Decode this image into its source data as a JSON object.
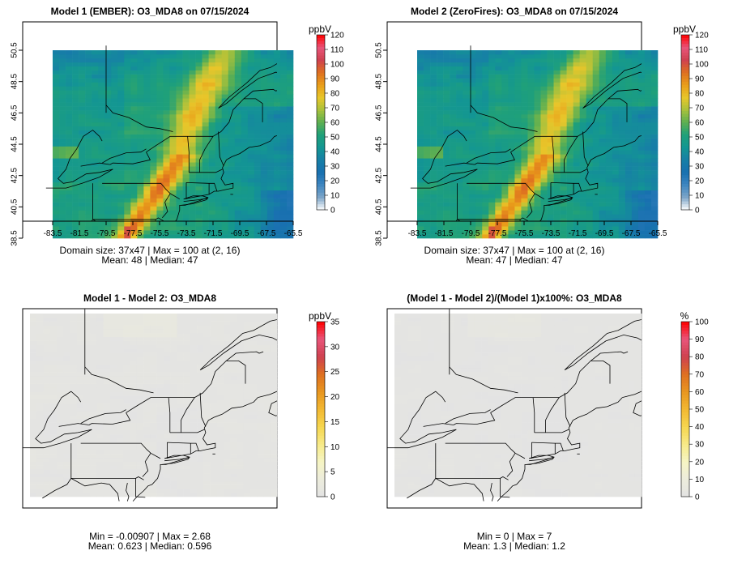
{
  "panels": [
    {
      "id": "p1",
      "title": "Model 1 (EMBER): O3_MDA8 on 07/15/2024",
      "field": "o3",
      "stat_line1": "Domain size: 37x47 | Max = 100 at (2, 16)",
      "stat_line2": "Mean: 48 |  Median: 47",
      "legend": {
        "unit": "ppbV",
        "min": 0,
        "max": 120,
        "step": 10,
        "labels": [
          "0",
          "10",
          "20",
          "30",
          "40",
          "50",
          "60",
          "70",
          "80",
          "90",
          "100",
          "110",
          "120"
        ]
      },
      "x_ticks": [
        "-83.5",
        "-81.5",
        "-79.5",
        "-77.5",
        "-75.5",
        "-73.5",
        "-71.5",
        "-69.5",
        "-67.5",
        "-65.5"
      ],
      "y_ticks": [
        "38.5",
        "40.5",
        "42.5",
        "44.5",
        "46.5",
        "48.5",
        "50.5"
      ],
      "show_axes": true
    },
    {
      "id": "p2",
      "title": "Model 2 (ZeroFires): O3_MDA8 on 07/15/2024",
      "field": "o3",
      "stat_line1": "Domain size: 37x47 | Max = 100 at (2, 16)",
      "stat_line2": "Mean: 47 |  Median: 47",
      "legend": {
        "unit": "ppbV",
        "min": 0,
        "max": 120,
        "step": 10,
        "labels": [
          "0",
          "10",
          "20",
          "30",
          "40",
          "50",
          "60",
          "70",
          "80",
          "90",
          "100",
          "110",
          "120"
        ]
      },
      "x_ticks": [
        "-83.5",
        "-81.5",
        "-79.5",
        "-77.5",
        "-75.5",
        "-73.5",
        "-71.5",
        "-69.5",
        "-67.5",
        "-65.5"
      ],
      "y_ticks": [
        "38.5",
        "40.5",
        "42.5",
        "44.5",
        "46.5",
        "48.5",
        "50.5"
      ],
      "show_axes": true
    },
    {
      "id": "p3",
      "title": "Model 1 - Model 2: O3_MDA8",
      "field": "diff",
      "stat_line1": "Min = -0.00907 | Max = 2.68",
      "stat_line2": "Mean: 0.623 |  Median: 0.596",
      "legend": {
        "unit": "ppbV",
        "min": 0,
        "max": 35,
        "step": 5,
        "labels": [
          "0",
          "5",
          "10",
          "15",
          "20",
          "25",
          "30",
          "35"
        ]
      },
      "x_ticks": [],
      "y_ticks": [],
      "show_axes": false
    },
    {
      "id": "p4",
      "title": "(Model 1 - Model 2)/(Model 1)x100%: O3_MDA8",
      "field": "pct",
      "stat_line1": "Min = 0 | Max = 7",
      "stat_line2": "Mean: 1.3 |  Median: 1.2",
      "legend": {
        "unit": "%",
        "min": 0,
        "max": 100,
        "step": 10,
        "labels": [
          "0",
          "10",
          "20",
          "30",
          "40",
          "50",
          "60",
          "70",
          "80",
          "90",
          "100"
        ]
      },
      "x_ticks": [],
      "y_ticks": [],
      "show_axes": false
    }
  ],
  "palette": {
    "o3": [
      "#ffffff",
      "#7ea6c8",
      "#3f86c0",
      "#1870b0",
      "#177fa6",
      "#139693",
      "#1fa07a",
      "#5caf52",
      "#a8c13c",
      "#e8c62a",
      "#e99e1a",
      "#de7020",
      "#cf4150",
      "#e8557a",
      "#ff0000"
    ],
    "diff": [
      "#e3e3e3",
      "#ececdc",
      "#f6f5c4",
      "#f7ea88",
      "#f6d64f",
      "#f2b832",
      "#e89620",
      "#de7020",
      "#cf4150",
      "#e8557a",
      "#ff0000"
    ],
    "pct": [
      "#e3e3e3",
      "#ececdc",
      "#f6f5c4",
      "#f7ea88",
      "#f6d64f",
      "#f2b832",
      "#e89620",
      "#de7020",
      "#cf4150",
      "#e8557a",
      "#ff0000"
    ]
  },
  "colors": {
    "state_lines": "#000000",
    "frame": "#000000",
    "no_data": "#ffffff"
  }
}
